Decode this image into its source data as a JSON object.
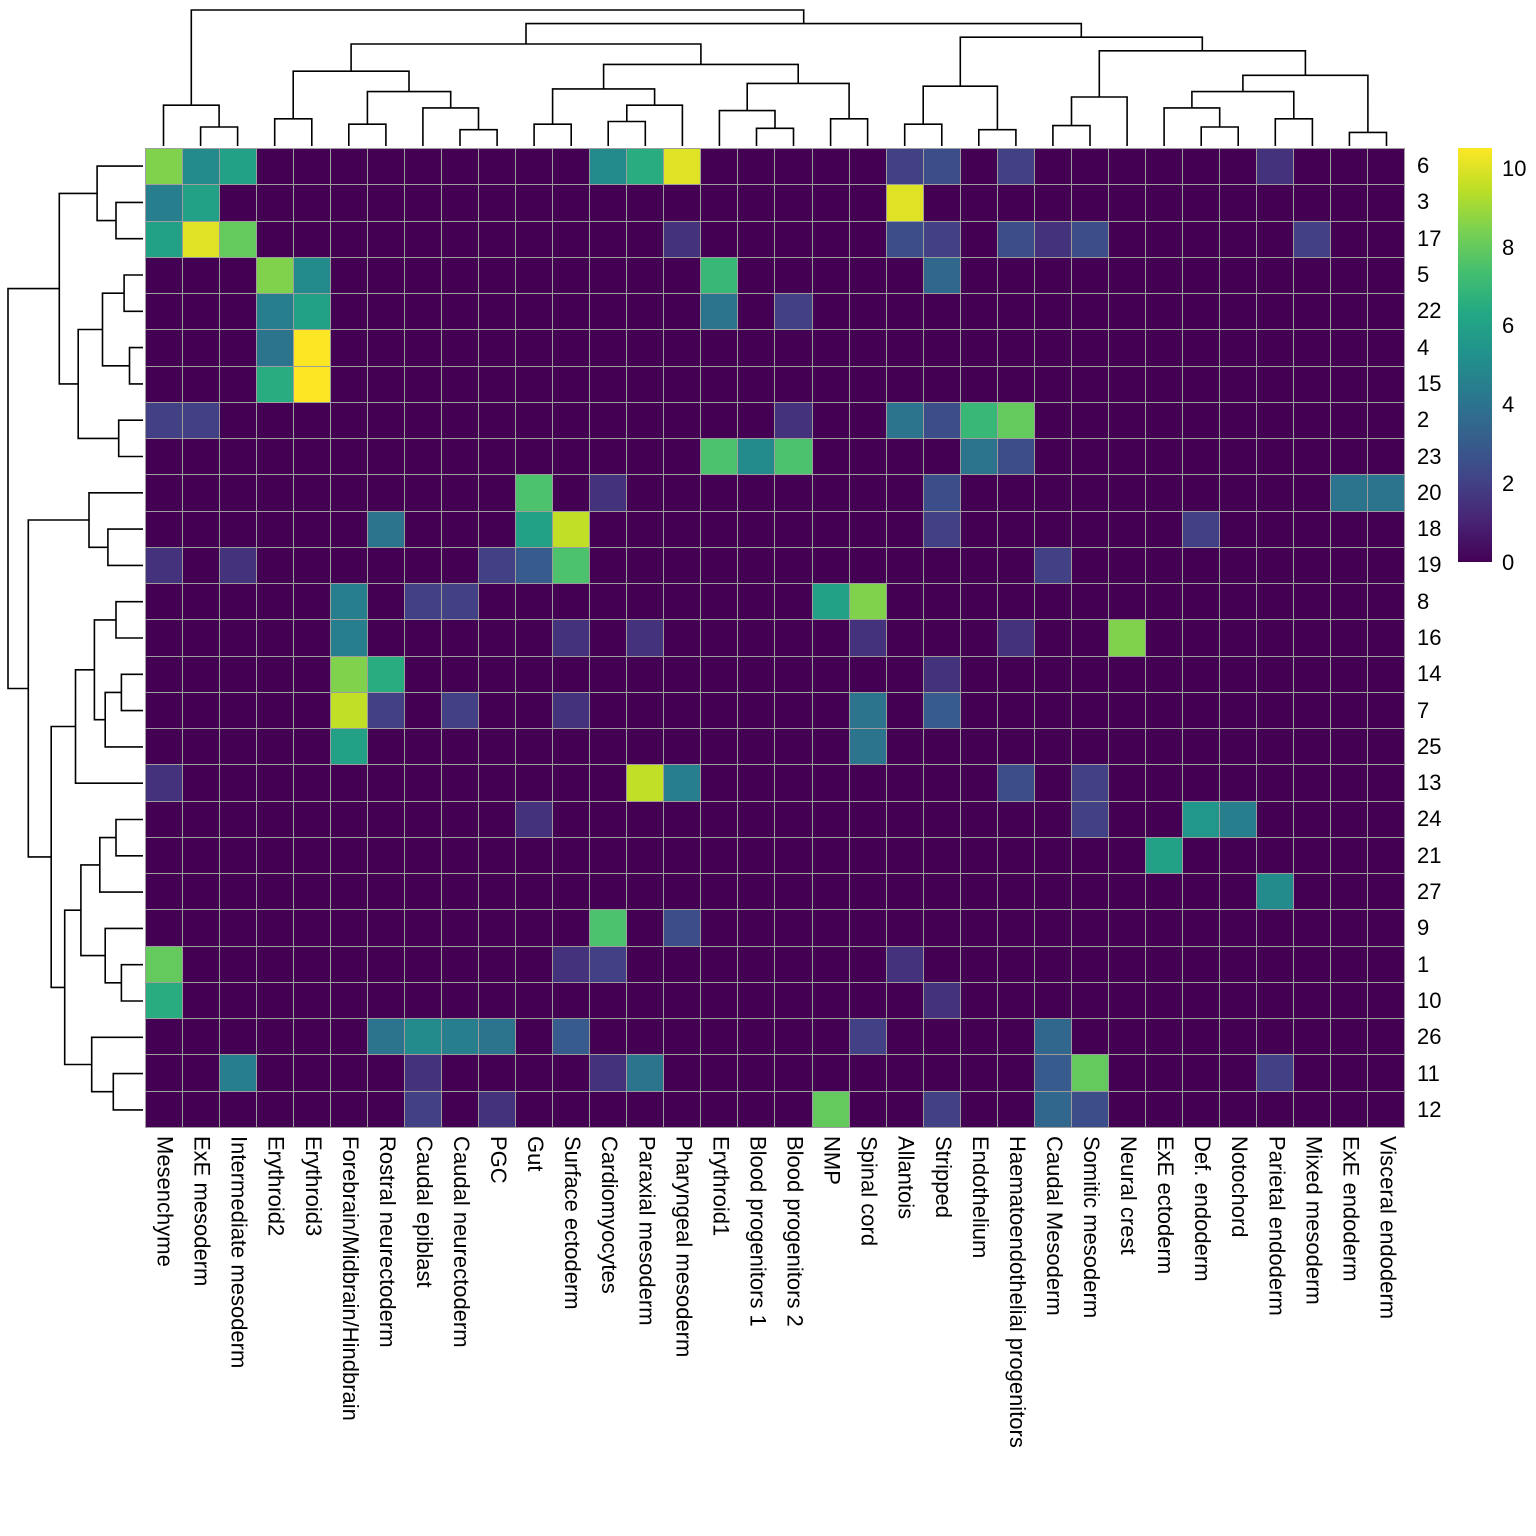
{
  "figure": {
    "kind": "clustered-heatmap-figure",
    "background": "#ffffff",
    "grid_line_color": "#9e9e9e",
    "dendrogram_color": "#000000"
  },
  "chart_data": {
    "type": "heatmap",
    "title": "",
    "xlabel": "",
    "ylabel": "",
    "columns": [
      "Mesenchyme",
      "ExE mesoderm",
      "Intermediate mesoderm",
      "Erythroid2",
      "Erythroid3",
      "Forebrain/Midbrain/Hindbrain",
      "Rostral neurectoderm",
      "Caudal epiblast",
      "Caudal neurectoderm",
      "PGC",
      "Gut",
      "Surface ectoderm",
      "Cardiomyocytes",
      "Paraxial mesoderm",
      "Pharyngeal mesoderm",
      "Erythroid1",
      "Blood progenitors 1",
      "Blood progenitors 2",
      "NMP",
      "Spinal cord",
      "Allantois",
      "Stripped",
      "Endothelium",
      "Haematoendothelial progenitors",
      "Caudal Mesoderm",
      "Somitic mesoderm",
      "Neural crest",
      "ExE ectoderm",
      "Def. endoderm",
      "Notochord",
      "Parietal endoderm",
      "Mixed mesoderm",
      "ExE endoderm",
      "Visceral endoderm"
    ],
    "rows": [
      "6",
      "3",
      "17",
      "5",
      "22",
      "4",
      "15",
      "2",
      "23",
      "20",
      "18",
      "19",
      "8",
      "16",
      "14",
      "7",
      "25",
      "13",
      "24",
      "21",
      "27",
      "9",
      "1",
      "10",
      "26",
      "11",
      "12"
    ],
    "vmin": 0,
    "vmax": 10.5,
    "fill_value": 0,
    "colorbar_ticks": [
      0,
      2,
      4,
      6,
      8,
      10
    ],
    "colormap": "viridis",
    "colormap_stops": [
      "#440154",
      "#482475",
      "#414487",
      "#355f8d",
      "#2a788e",
      "#21918c",
      "#22a884",
      "#44bf70",
      "#7ad151",
      "#bddf26",
      "#fde725"
    ],
    "values": {
      "6": {
        "Mesenchyme": 8.5,
        "ExE mesoderm": 5,
        "Intermediate mesoderm": 6,
        "Cardiomyocytes": 5,
        "Paraxial mesoderm": 6.5,
        "Pharyngeal mesoderm": 10,
        "Allantois": 2,
        "Stripped": 2.5,
        "Haematoendothelial progenitors": 2,
        "Parietal endoderm": 1.5
      },
      "3": {
        "Mesenchyme": 4.5,
        "ExE mesoderm": 6,
        "Allantois": 10
      },
      "17": {
        "Mesenchyme": 6,
        "ExE mesoderm": 10,
        "Intermediate mesoderm": 8,
        "Pharyngeal mesoderm": 1.5,
        "Allantois": 2.5,
        "Stripped": 2,
        "Haematoendothelial progenitors": 2.5,
        "Caudal Mesoderm": 1.5,
        "Somitic mesoderm": 2.5,
        "Mixed mesoderm": 2
      },
      "5": {
        "Erythroid2": 8.5,
        "Erythroid3": 5,
        "Erythroid1": 7,
        "Stripped": 3.5
      },
      "22": {
        "Erythroid2": 4.5,
        "Erythroid3": 6,
        "Erythroid1": 4,
        "Blood progenitors 2": 2
      },
      "4": {
        "Erythroid2": 4,
        "Erythroid3": 10.5
      },
      "15": {
        "Erythroid2": 6.5,
        "Erythroid3": 10.5
      },
      "2": {
        "Mesenchyme": 2,
        "ExE mesoderm": 2,
        "Blood progenitors 2": 1.5,
        "Allantois": 4,
        "Stripped": 2.5,
        "Endothelium": 7,
        "Haematoendothelial progenitors": 8
      },
      "23": {
        "Erythroid1": 7.5,
        "Blood progenitors 1": 5,
        "Blood progenitors 2": 7.5,
        "Endothelium": 4,
        "Haematoendothelial progenitors": 2.5
      },
      "20": {
        "Gut": 7.5,
        "Cardiomyocytes": 1.5,
        "Stripped": 2.5,
        "ExE endoderm": 4,
        "Visceral endoderm": 4
      },
      "18": {
        "Rostral neurectoderm": 4,
        "Gut": 6,
        "Surface ectoderm": 9.5,
        "Stripped": 2,
        "Def. endoderm": 2
      },
      "19": {
        "Mesenchyme": 1.5,
        "Intermediate mesoderm": 1.5,
        "PGC": 2,
        "Gut": 3,
        "Surface ectoderm": 7.5,
        "Caudal Mesoderm": 2
      },
      "8": {
        "Forebrain/Midbrain/Hindbrain": 4.5,
        "Caudal epiblast": 2,
        "Caudal neurectoderm": 2,
        "NMP": 6,
        "Spinal cord": 8.5
      },
      "16": {
        "Forebrain/Midbrain/Hindbrain": 4.5,
        "Surface ectoderm": 1.5,
        "Paraxial mesoderm": 1.5,
        "Spinal cord": 1.5,
        "Haematoendothelial progenitors": 1.5,
        "Neural crest": 8.5
      },
      "14": {
        "Forebrain/Midbrain/Hindbrain": 8.5,
        "Rostral neurectoderm": 6.5,
        "Stripped": 1.5
      },
      "7": {
        "Forebrain/Midbrain/Hindbrain": 9.5,
        "Rostral neurectoderm": 2,
        "Caudal neurectoderm": 2,
        "Surface ectoderm": 1.5,
        "Spinal cord": 4,
        "Stripped": 3
      },
      "25": {
        "Forebrain/Midbrain/Hindbrain": 6,
        "Spinal cord": 4
      },
      "13": {
        "Mesenchyme": 1.5,
        "Paraxial mesoderm": 9.5,
        "Pharyngeal mesoderm": 4.5,
        "Haematoendothelial progenitors": 2.5,
        "Somitic mesoderm": 2
      },
      "24": {
        "Gut": 1.5,
        "Somitic mesoderm": 2,
        "Def. endoderm": 5.5,
        "Notochord": 4.5
      },
      "21": {
        "ExE ectoderm": 6
      },
      "27": {
        "Parietal endoderm": 5
      },
      "9": {
        "Cardiomyocytes": 7.5,
        "Pharyngeal mesoderm": 2.5
      },
      "1": {
        "Mesenchyme": 8,
        "Surface ectoderm": 1.5,
        "Cardiomyocytes": 2,
        "Allantois": 1.5
      },
      "10": {
        "Mesenchyme": 6.5,
        "Stripped": 1.5
      },
      "26": {
        "Rostral neurectoderm": 4,
        "Caudal epiblast": 5,
        "Caudal neurectoderm": 4.5,
        "PGC": 4,
        "Surface ectoderm": 3,
        "Spinal cord": 2,
        "Caudal Mesoderm": 3.5
      },
      "11": {
        "Intermediate mesoderm": 4.5,
        "Caudal epiblast": 1.5,
        "Cardiomyocytes": 1.5,
        "Paraxial mesoderm": 4,
        "Caudal Mesoderm": 3,
        "Somitic mesoderm": 8,
        "Parietal endoderm": 2
      },
      "12": {
        "Caudal epiblast": 2,
        "PGC": 1.5,
        "NMP": 8,
        "Stripped": 2,
        "Caudal Mesoderm": 3.5,
        "Somitic mesoderm": 2.5
      }
    },
    "col_dendrogram": {
      "h": 1.0,
      "c": [
        {
          "h": 0.3,
          "c": [
            0,
            {
              "h": 0.14,
              "c": [
                1,
                2
              ]
            }
          ]
        },
        {
          "h": 0.9,
          "c": [
            {
              "h": 0.75,
              "c": [
                {
                  "h": 0.55,
                  "c": [
                    {
                      "h": 0.2,
                      "c": [
                        3,
                        4
                      ]
                    },
                    {
                      "h": 0.4,
                      "c": [
                        {
                          "h": 0.16,
                          "c": [
                            5,
                            6
                          ]
                        },
                        {
                          "h": 0.28,
                          "c": [
                            7,
                            {
                              "h": 0.12,
                              "c": [
                                8,
                                9
                              ]
                            }
                          ]
                        }
                      ]
                    }
                  ]
                },
                {
                  "h": 0.6,
                  "c": [
                    {
                      "h": 0.42,
                      "c": [
                        {
                          "h": 0.16,
                          "c": [
                            10,
                            11
                          ]
                        },
                        {
                          "h": 0.3,
                          "c": [
                            {
                              "h": 0.18,
                              "c": [
                                12,
                                13
                              ]
                            },
                            14
                          ]
                        }
                      ]
                    },
                    {
                      "h": 0.46,
                      "c": [
                        {
                          "h": 0.26,
                          "c": [
                            15,
                            {
                              "h": 0.13,
                              "c": [
                                16,
                                17
                              ]
                            }
                          ]
                        },
                        {
                          "h": 0.2,
                          "c": [
                            18,
                            19
                          ]
                        }
                      ]
                    }
                  ]
                }
              ]
            },
            {
              "h": 0.8,
              "c": [
                {
                  "h": 0.44,
                  "c": [
                    {
                      "h": 0.16,
                      "c": [
                        20,
                        21
                      ]
                    },
                    {
                      "h": 0.12,
                      "c": [
                        22,
                        23
                      ]
                    }
                  ]
                },
                {
                  "h": 0.7,
                  "c": [
                    {
                      "h": 0.36,
                      "c": [
                        {
                          "h": 0.15,
                          "c": [
                            24,
                            25
                          ]
                        },
                        26
                      ]
                    },
                    {
                      "h": 0.52,
                      "c": [
                        {
                          "h": 0.4,
                          "c": [
                            {
                              "h": 0.28,
                              "c": [
                                27,
                                {
                                  "h": 0.14,
                                  "c": [
                                    28,
                                    29
                                  ]
                                }
                              ]
                            },
                            {
                              "h": 0.2,
                              "c": [
                                30,
                                31
                              ]
                            }
                          ]
                        },
                        {
                          "h": 0.1,
                          "c": [
                            32,
                            33
                          ]
                        }
                      ]
                    }
                  ]
                }
              ]
            }
          ]
        }
      ]
    },
    "row_dendrogram": {
      "h": 1.0,
      "c": [
        {
          "h": 0.62,
          "c": [
            {
              "h": 0.34,
              "c": [
                0,
                {
                  "h": 0.2,
                  "c": [
                    1,
                    2
                  ]
                }
              ]
            },
            {
              "h": 0.48,
              "c": [
                {
                  "h": 0.3,
                  "c": [
                    {
                      "h": 0.14,
                      "c": [
                        3,
                        4
                      ]
                    },
                    {
                      "h": 0.1,
                      "c": [
                        5,
                        6
                      ]
                    }
                  ]
                },
                {
                  "h": 0.18,
                  "c": [
                    7,
                    8
                  ]
                }
              ]
            }
          ]
        },
        {
          "h": 0.85,
          "c": [
            {
              "h": 0.4,
              "c": [
                9,
                {
                  "h": 0.26,
                  "c": [
                    10,
                    11
                  ]
                }
              ]
            },
            {
              "h": 0.68,
              "c": [
                {
                  "h": 0.5,
                  "c": [
                    {
                      "h": 0.36,
                      "c": [
                        {
                          "h": 0.2,
                          "c": [
                            12,
                            13
                          ]
                        },
                        {
                          "h": 0.28,
                          "c": [
                            {
                              "h": 0.16,
                              "c": [
                                14,
                                15
                              ]
                            },
                            16
                          ]
                        }
                      ]
                    },
                    17
                  ]
                },
                {
                  "h": 0.58,
                  "c": [
                    {
                      "h": 0.46,
                      "c": [
                        {
                          "h": 0.32,
                          "c": [
                            {
                              "h": 0.2,
                              "c": [
                                18,
                                19
                              ]
                            },
                            20
                          ]
                        },
                        {
                          "h": 0.28,
                          "c": [
                            21,
                            {
                              "h": 0.16,
                              "c": [
                                22,
                                23
                              ]
                            }
                          ]
                        }
                      ]
                    },
                    {
                      "h": 0.38,
                      "c": [
                        24,
                        {
                          "h": 0.22,
                          "c": [
                            25,
                            26
                          ]
                        }
                      ]
                    }
                  ]
                }
              ]
            }
          ]
        }
      ]
    }
  }
}
